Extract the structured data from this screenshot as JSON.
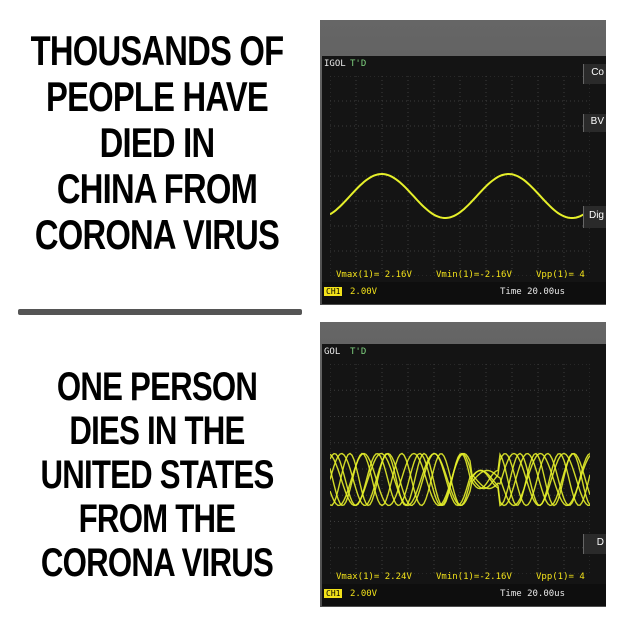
{
  "captions": {
    "top": [
      "THOUSANDS OF",
      "PEOPLE HAVE",
      "DIED IN",
      "CHINA FROM",
      "CORONA VIRUS"
    ],
    "bottom": [
      "ONE PERSON",
      "DIES IN THE",
      "UNITED STATES",
      "FROM THE",
      "CORONA VIRUS"
    ]
  },
  "scope_top": {
    "brand": "IGOL",
    "trig_state": "T'D",
    "side_labels": [
      "Co",
      "BV",
      "Dig"
    ],
    "vmax": "Vmax(1)= 2.16V",
    "vmin": "Vmin(1)=-2.16V",
    "vpp": "Vpp(1)= 4",
    "ch": "CH1",
    "volts_div": "2.00V",
    "time": "Time 20.00us"
  },
  "scope_bot": {
    "brand": "GOL",
    "trig_state": "T'D",
    "side_labels": [
      "D"
    ],
    "vmax": "Vmax(1)= 2.24V",
    "vmin": "Vmin(1)=-2.16V",
    "vpp": "Vpp(1)= 4",
    "ch": "CH1",
    "volts_div": "2.00V",
    "time": "Time 20.00us"
  },
  "colors": {
    "trace": "#e6f02a",
    "grid": "#3c3c3c"
  }
}
